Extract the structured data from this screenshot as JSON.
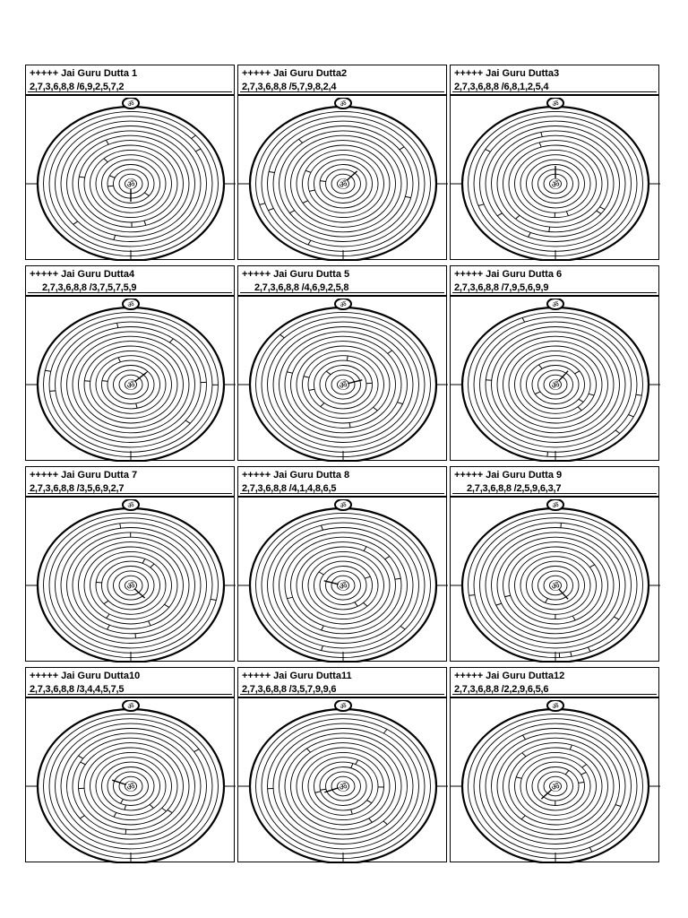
{
  "cards": [
    {
      "title": "+++++ Jai Guru Dutta 1",
      "code": "2,7,3,6,8,8 /6,9,2,5,7,2",
      "hand": 90
    },
    {
      "title": "+++++ Jai Guru Dutta2",
      "code": "2,7,3,6,8,8 /5,7,9,8,2,4",
      "hand": -45
    },
    {
      "title": "+++++ Jai Guru Dutta3",
      "code": "2,7,3,6,8,8 /6,8,1,2,5,4",
      "hand": -90
    },
    {
      "title": "+++++ Jai Guru Dutta4",
      "code": "2,7,3,6,8,8   /3,7,5,7,5,9",
      "hand": -40
    },
    {
      "title": "+++++ Jai Guru Dutta 5",
      "code": "2,7,3,6,8,8   /4,6,9,2,5,8",
      "hand": -15
    },
    {
      "title": "+++++ Jai Guru Dutta 6",
      "code": "2,7,3,6,8,8 /7,9,5,6,9,9",
      "hand": -50
    },
    {
      "title": "+++++ Jai Guru Dutta 7",
      "code": "2,7,3,6,8,8 /3,5,6,9,2,7",
      "hand": 45
    },
    {
      "title": "+++++ Jai Guru Dutta 8",
      "code": "2,7,3,6,8,8 /4,1,4,8,6,5",
      "hand": 195
    },
    {
      "title": "+++++ Jai Guru Dutta 9",
      "code": "2,7,3,6,8,8   /2,5,9,6,3,7",
      "hand": 50
    },
    {
      "title": "+++++ Jai Guru Dutta10",
      "code": "2,7,3,6,8,8 /3,4,4,5,7,5",
      "hand": 200
    },
    {
      "title": "+++++ Jai Guru Dutta11",
      "code": "2,7,3,6,8,8 /3,5,7,9,9,6",
      "hand": 160
    },
    {
      "title": "+++++ Jai Guru Dutta12",
      "code": "2,7,3,6,8,8 /2,2,9,6,5,6",
      "hand": 135
    }
  ]
}
